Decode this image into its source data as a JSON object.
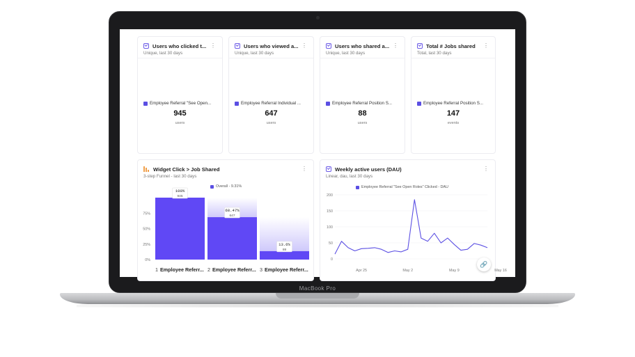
{
  "device": {
    "brand_label": "MacBook Pro"
  },
  "colors": {
    "accent": "#5b4fe3",
    "funnel_fill": "#6048f5",
    "card_border": "#ececf1"
  },
  "metrics": [
    {
      "title": "Users who clicked t...",
      "subtitle": "Unique, last 30 days",
      "series": "Employee Referral \"See Open...",
      "value": "945",
      "unit": "users"
    },
    {
      "title": "Users who viewed a...",
      "subtitle": "Unique, last 30 days",
      "series": "Employee Referral Individual ...",
      "value": "647",
      "unit": "users"
    },
    {
      "title": "Users who shared a...",
      "subtitle": "Unique, last 30 days",
      "series": "Employee Referral Position S...",
      "value": "88",
      "unit": "users"
    },
    {
      "title": "Total # Jobs shared",
      "subtitle": "Total, last 30 days",
      "series": "Employee Referral Position S...",
      "value": "147",
      "unit": "events"
    }
  ],
  "funnel": {
    "title": "Widget Click > Job Shared",
    "subtitle": "3-step Funnel - last 30 days",
    "legend": "Overall - 9.31%",
    "icon": "funnel-chart-icon",
    "chart_data": {
      "type": "bar",
      "y_ticks": [
        "75%",
        "50%",
        "25%",
        "0%"
      ],
      "ylim": [
        0,
        100
      ],
      "steps": [
        {
          "index": "1",
          "label": "Employee Referr...",
          "percent": 100,
          "percent_label": "100%",
          "count": "945"
        },
        {
          "index": "2",
          "label": "Employee Referr...",
          "percent": 68.47,
          "percent_label": "68.47%",
          "count": "647"
        },
        {
          "index": "3",
          "label": "Employee Referr...",
          "percent": 13.6,
          "percent_label": "13.6%",
          "count": "88"
        }
      ]
    }
  },
  "dau": {
    "title": "Weekly active users (DAU)",
    "subtitle": "Linear, dau, last 30 days",
    "legend": "Employee Referral \"See Open Roles\" Clicked - DAU",
    "chart_data": {
      "type": "line",
      "y_ticks": [
        "200",
        "150",
        "100",
        "50",
        "0"
      ],
      "ylim": [
        0,
        200
      ],
      "x_ticks": [
        "Apr 25",
        "May 2",
        "May 9",
        "May 16"
      ],
      "x_tick_index": [
        4,
        11,
        18,
        25
      ],
      "values": [
        15,
        55,
        35,
        25,
        32,
        33,
        35,
        30,
        20,
        25,
        22,
        30,
        185,
        65,
        55,
        80,
        50,
        65,
        45,
        27,
        30,
        48,
        43,
        35
      ]
    }
  }
}
